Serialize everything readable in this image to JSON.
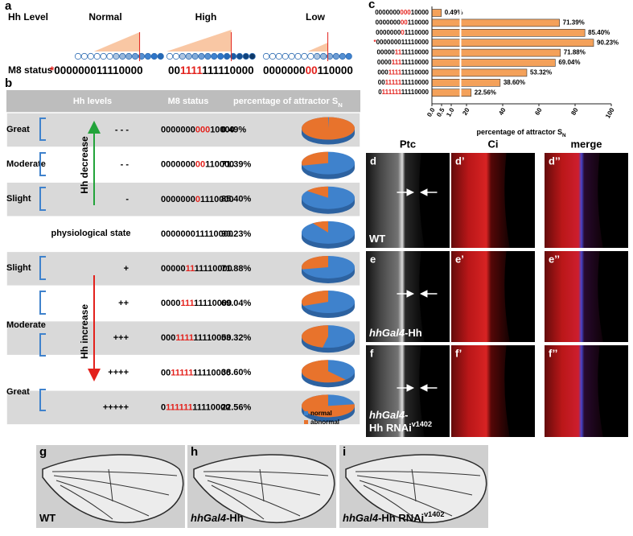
{
  "panel_a": {
    "letter": "a",
    "title": "Hh Level",
    "m8_label": "M8 status",
    "levels": [
      {
        "name": "Normal",
        "m8": [
          {
            "text": "*",
            "red": true
          },
          {
            "text": "000000011110000"
          }
        ]
      },
      {
        "name": "High",
        "m8": [
          {
            "text": "00"
          },
          {
            "text": "1111",
            "red": true
          },
          {
            "text": "111110000"
          }
        ]
      },
      {
        "name": "Low",
        "m8": [
          {
            "text": "0000000"
          },
          {
            "text": "00",
            "red": true
          },
          {
            "text": "110000"
          }
        ]
      }
    ]
  },
  "panel_b": {
    "letter": "b",
    "headers": [
      [
        {
          "text": "Hh levels"
        }
      ],
      [
        {
          "text": "M8 status"
        }
      ],
      [
        {
          "text": "percentage of attractor S"
        },
        {
          "text": "N",
          "sub": true
        }
      ]
    ],
    "level_labels": [
      "Great",
      "Moderate",
      "Slight",
      "physiological state",
      "Slight",
      "Moderate",
      "Great"
    ],
    "arrows": [
      "Hh decrease",
      "Hh increase"
    ],
    "rows": [
      {
        "symbol": "- - -",
        "m8": [
          {
            "text": "0000000"
          },
          {
            "text": "000",
            "red": true
          },
          {
            "text": "10000"
          }
        ],
        "percentage": 0.49,
        "percentage_label": "0.49%"
      },
      {
        "symbol": "- -",
        "m8": [
          {
            "text": "0000000"
          },
          {
            "text": "00",
            "red": true
          },
          {
            "text": "110000"
          }
        ],
        "percentage": 71.39,
        "percentage_label": "71.39%"
      },
      {
        "symbol": "-",
        "m8": [
          {
            "text": "0000000"
          },
          {
            "text": "0",
            "red": true
          },
          {
            "text": "1110000"
          }
        ],
        "percentage": 85.4,
        "percentage_label": "85.40%"
      },
      {
        "m8": [
          {
            "text": "000000011110000"
          }
        ],
        "percentage": 90.23,
        "percentage_label": "90.23%"
      },
      {
        "symbol": "+",
        "m8": [
          {
            "text": "00000"
          },
          {
            "text": "11",
            "red": true
          },
          {
            "text": "11110000"
          }
        ],
        "percentage": 71.88,
        "percentage_label": "71.88%"
      },
      {
        "symbol": "++",
        "m8": [
          {
            "text": "0000"
          },
          {
            "text": "111",
            "red": true
          },
          {
            "text": "11110000"
          }
        ],
        "percentage": 69.04,
        "percentage_label": "69.04%"
      },
      {
        "symbol": "+++",
        "m8": [
          {
            "text": "000"
          },
          {
            "text": "1111",
            "red": true
          },
          {
            "text": "11110000"
          }
        ],
        "percentage": 53.32,
        "percentage_label": "53.32%"
      },
      {
        "symbol": "++++",
        "m8": [
          {
            "text": "00"
          },
          {
            "text": "11111",
            "red": true
          },
          {
            "text": "11110000"
          }
        ],
        "percentage": 38.6,
        "percentage_label": "38.60%"
      },
      {
        "symbol": "+++++",
        "m8": [
          {
            "text": "0"
          },
          {
            "text": "111111",
            "red": true
          },
          {
            "text": "11110000"
          }
        ],
        "percentage": 22.56,
        "percentage_label": "22.56%"
      }
    ],
    "legend": [
      {
        "name": "normal",
        "color": "#3f82cc"
      },
      {
        "name": "abnormal",
        "color": "#e8732c"
      }
    ]
  },
  "chart_data": {
    "type": "bar",
    "orientation": "horizontal",
    "letter": "c",
    "color": "#f4a15a",
    "categories": [
      [
        {
          "text": "0000000"
        },
        {
          "text": "000",
          "red": true
        },
        {
          "text": "10000"
        }
      ],
      [
        {
          "text": "0000000"
        },
        {
          "text": "00",
          "red": true
        },
        {
          "text": "110000"
        }
      ],
      [
        {
          "text": "0000000"
        },
        {
          "text": "0",
          "red": true
        },
        {
          "text": "1110000"
        }
      ],
      [
        {
          "text": "*",
          "red": true
        },
        {
          "text": "000000011110000"
        }
      ],
      [
        {
          "text": "00000"
        },
        {
          "text": "11",
          "red": true
        },
        {
          "text": "11110000"
        }
      ],
      [
        {
          "text": "0000"
        },
        {
          "text": "111",
          "red": true
        },
        {
          "text": "11110000"
        }
      ],
      [
        {
          "text": "000"
        },
        {
          "text": "1111",
          "red": true
        },
        {
          "text": "11110000"
        }
      ],
      [
        {
          "text": "00"
        },
        {
          "text": "11111",
          "red": true
        },
        {
          "text": "11110000"
        }
      ],
      [
        {
          "text": "0"
        },
        {
          "text": "111111",
          "red": true
        },
        {
          "text": "11110000"
        }
      ]
    ],
    "values": [
      0.49,
      71.39,
      85.4,
      90.23,
      71.88,
      69.04,
      53.32,
      38.6,
      22.56
    ],
    "value_labels": [
      "0.49%",
      "71.39%",
      "85.40%",
      "90.23%",
      "71.88%",
      "69.04%",
      "53.32%",
      "38.60%",
      "22.56%"
    ],
    "xlim": [
      0,
      100
    ],
    "xticks": [
      {
        "value": 0,
        "label": "0.0"
      },
      {
        "value": 0.5,
        "label": "0.5"
      },
      {
        "value": 1,
        "label": "1.0"
      },
      20,
      40,
      60,
      80,
      100
    ],
    "xlabel": [
      {
        "text": "percentage of attractor S"
      },
      {
        "text": "N",
        "sub": true
      }
    ]
  },
  "panel_micro": {
    "columns": [
      "Ptc",
      "Ci",
      "merge"
    ],
    "rows": [
      {
        "letters": [
          "d",
          "d’",
          "d’’"
        ],
        "genotype": [
          [
            {
              "text": "WT"
            }
          ]
        ]
      },
      {
        "letters": [
          "e",
          "e’",
          "e’’"
        ],
        "genotype": [
          [
            {
              "text": "hhGal4",
              "italic": true
            },
            {
              "text": "-Hh"
            }
          ]
        ]
      },
      {
        "letters": [
          "f",
          "f’",
          "f’’"
        ],
        "genotype": [
          [
            {
              "text": "hhGal4",
              "italic": true
            },
            {
              "text": "-"
            }
          ],
          [
            {
              "text": "Hh RNAi"
            },
            {
              "text": "v1402",
              "sup": true
            }
          ]
        ]
      }
    ]
  },
  "panel_wings": {
    "panels": [
      {
        "letter": "g",
        "genotype": [
          [
            {
              "text": "WT"
            }
          ]
        ]
      },
      {
        "letter": "h",
        "genotype": [
          [
            {
              "text": "hhGal4",
              "italic": true
            },
            {
              "text": "-Hh"
            }
          ]
        ]
      },
      {
        "letter": "i",
        "genotype": [
          [
            {
              "text": "hhGal4",
              "italic": true
            },
            {
              "text": "-Hh RNAi"
            },
            {
              "text": "v1402",
              "sup": true
            }
          ]
        ]
      }
    ]
  }
}
